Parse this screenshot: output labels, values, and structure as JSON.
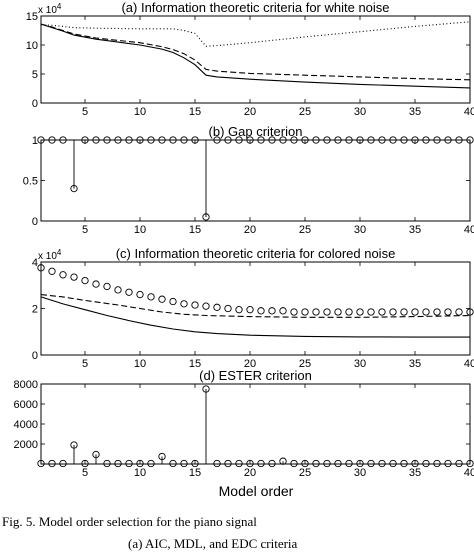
{
  "figure": {
    "xlabel": "Model order",
    "caption_line1": "Fig. 5.    Model order selection for the piano signal",
    "caption_line2": "(a) AIC, MDL, and EDC criteria"
  },
  "chart_data": [
    {
      "type": "line",
      "title": "(a) Information theoretic criteria for white noise",
      "xlim": [
        1,
        40
      ],
      "ylim": [
        0,
        15
      ],
      "multiplier": "x 10^4",
      "multiplier_text": "x 10",
      "multiplier_exp": "4",
      "xticks": [
        5,
        10,
        15,
        20,
        25,
        30,
        35,
        40
      ],
      "yticks": [
        0,
        5,
        10,
        15
      ],
      "series": [
        {
          "style": "dotted",
          "points": [
            [
              1,
              13.5
            ],
            [
              2,
              13.4
            ],
            [
              3,
              13.2
            ],
            [
              4,
              13.0
            ],
            [
              6,
              12.9
            ],
            [
              10,
              12.8
            ],
            [
              13,
              12.8
            ],
            [
              14,
              12.5
            ],
            [
              15,
              12.0
            ],
            [
              16,
              9.8
            ],
            [
              17,
              9.9
            ],
            [
              20,
              10.4
            ],
            [
              25,
              11.4
            ],
            [
              30,
              12.3
            ],
            [
              35,
              13.2
            ],
            [
              40,
              14.0
            ]
          ]
        },
        {
          "style": "dashed",
          "points": [
            [
              1,
              13.6
            ],
            [
              2,
              13.1
            ],
            [
              3,
              12.5
            ],
            [
              4,
              11.9
            ],
            [
              6,
              11.2
            ],
            [
              8,
              10.8
            ],
            [
              10,
              10.4
            ],
            [
              12,
              9.7
            ],
            [
              13,
              9.2
            ],
            [
              14,
              8.5
            ],
            [
              15,
              7.4
            ],
            [
              16,
              5.8
            ],
            [
              17,
              5.5
            ],
            [
              20,
              5.1
            ],
            [
              25,
              4.8
            ],
            [
              30,
              4.5
            ],
            [
              35,
              4.2
            ],
            [
              40,
              4.0
            ]
          ]
        },
        {
          "style": "solid",
          "points": [
            [
              1,
              13.6
            ],
            [
              2,
              13.0
            ],
            [
              3,
              12.4
            ],
            [
              4,
              11.7
            ],
            [
              6,
              11.0
            ],
            [
              8,
              10.5
            ],
            [
              10,
              10.0
            ],
            [
              12,
              9.3
            ],
            [
              13,
              8.7
            ],
            [
              14,
              7.8
            ],
            [
              15,
              6.6
            ],
            [
              16,
              4.8
            ],
            [
              17,
              4.5
            ],
            [
              20,
              4.1
            ],
            [
              25,
              3.6
            ],
            [
              30,
              3.2
            ],
            [
              35,
              2.9
            ],
            [
              40,
              2.6
            ]
          ]
        }
      ]
    },
    {
      "type": "scatter",
      "title": "(b) Gap criterion",
      "xlim": [
        1,
        40
      ],
      "ylim": [
        0,
        1
      ],
      "xticks": [
        5,
        10,
        15,
        20,
        25,
        30,
        35,
        40
      ],
      "yticks": [
        0,
        0.5,
        1
      ],
      "baseline": 1,
      "y": [
        1,
        1,
        1,
        0.4,
        1,
        1,
        1,
        1,
        1,
        1,
        1,
        1,
        1,
        1,
        1,
        0.05,
        1,
        1,
        1,
        1,
        1,
        1,
        1,
        1,
        1,
        1,
        1,
        1,
        1,
        1,
        1,
        1,
        1,
        1,
        1,
        1,
        1,
        1,
        1,
        1
      ]
    },
    {
      "type": "scatter",
      "title": "(c) Information theoretic criteria for colored noise",
      "xlim": [
        1,
        40
      ],
      "ylim": [
        0,
        4
      ],
      "multiplier": "x 10^4",
      "multiplier_text": "x 10",
      "multiplier_exp": "4",
      "xticks": [
        5,
        10,
        15,
        20,
        25,
        30,
        35,
        40
      ],
      "yticks": [
        0,
        2,
        4
      ],
      "markers": [
        3.75,
        3.6,
        3.45,
        3.35,
        3.2,
        3.05,
        2.95,
        2.8,
        2.7,
        2.6,
        2.5,
        2.4,
        2.3,
        2.2,
        2.15,
        2.1,
        2.05,
        2.0,
        1.95,
        1.95,
        1.9,
        1.9,
        1.9,
        1.85,
        1.85,
        1.85,
        1.85,
        1.85,
        1.85,
        1.85,
        1.85,
        1.85,
        1.85,
        1.85,
        1.85,
        1.85,
        1.85,
        1.85,
        1.85,
        1.85
      ],
      "series": [
        {
          "style": "dashed",
          "points": [
            [
              1,
              2.6
            ],
            [
              3,
              2.5
            ],
            [
              5,
              2.35
            ],
            [
              8,
              2.15
            ],
            [
              10,
              2.0
            ],
            [
              12,
              1.85
            ],
            [
              14,
              1.75
            ],
            [
              16,
              1.7
            ],
            [
              20,
              1.65
            ],
            [
              25,
              1.62
            ],
            [
              30,
              1.62
            ],
            [
              35,
              1.65
            ],
            [
              40,
              1.7
            ]
          ]
        },
        {
          "style": "solid",
          "points": [
            [
              1,
              2.5
            ],
            [
              3,
              2.2
            ],
            [
              5,
              1.95
            ],
            [
              7,
              1.7
            ],
            [
              9,
              1.48
            ],
            [
              11,
              1.28
            ],
            [
              13,
              1.12
            ],
            [
              15,
              1.0
            ],
            [
              17,
              0.92
            ],
            [
              20,
              0.85
            ],
            [
              25,
              0.8
            ],
            [
              30,
              0.78
            ],
            [
              35,
              0.77
            ],
            [
              40,
              0.77
            ]
          ]
        }
      ]
    },
    {
      "type": "scatter",
      "title": "(d) ESTER criterion",
      "xlim": [
        1,
        40
      ],
      "ylim": [
        0,
        8000
      ],
      "xticks": [
        5,
        10,
        15,
        20,
        25,
        30,
        35,
        40
      ],
      "yticks": [
        2000,
        4000,
        6000,
        8000
      ],
      "baseline": 0,
      "y": [
        50,
        50,
        50,
        1900,
        50,
        950,
        50,
        50,
        50,
        50,
        50,
        750,
        50,
        50,
        50,
        7500,
        50,
        50,
        50,
        50,
        50,
        50,
        280,
        50,
        50,
        50,
        50,
        50,
        50,
        50,
        50,
        50,
        50,
        50,
        50,
        50,
        50,
        50,
        50,
        50
      ]
    }
  ]
}
